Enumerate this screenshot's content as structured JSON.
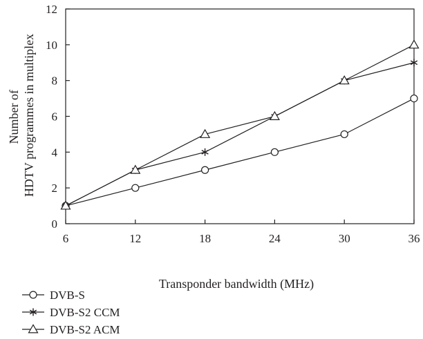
{
  "chart_data": {
    "type": "line",
    "xlabel": "Transponder bandwidth (MHz)",
    "ylabel_lines": [
      "Number of",
      "HDTV programmes in multiplex"
    ],
    "x": [
      6,
      12,
      18,
      24,
      30,
      36
    ],
    "xlim": [
      6,
      36
    ],
    "ylim": [
      0,
      12
    ],
    "xticks": [
      "6",
      "12",
      "18",
      "24",
      "30",
      "36"
    ],
    "yticks": [
      "0",
      "2",
      "4",
      "6",
      "8",
      "10",
      "12"
    ],
    "grid": false,
    "legend_position": "bottom-left, below plot",
    "series": [
      {
        "name": "DVB-S",
        "marker": "circle",
        "values": [
          1,
          2,
          3,
          4,
          5,
          7
        ]
      },
      {
        "name": "DVB-S2 CCM",
        "marker": "star",
        "values": [
          1,
          3,
          4,
          6,
          8,
          9
        ]
      },
      {
        "name": "DVB-S2 ACM",
        "marker": "triangle",
        "values": [
          1,
          3,
          5,
          6,
          8,
          10
        ]
      }
    ],
    "colors": {
      "line": "#231f20",
      "background": "#ffffff"
    }
  }
}
